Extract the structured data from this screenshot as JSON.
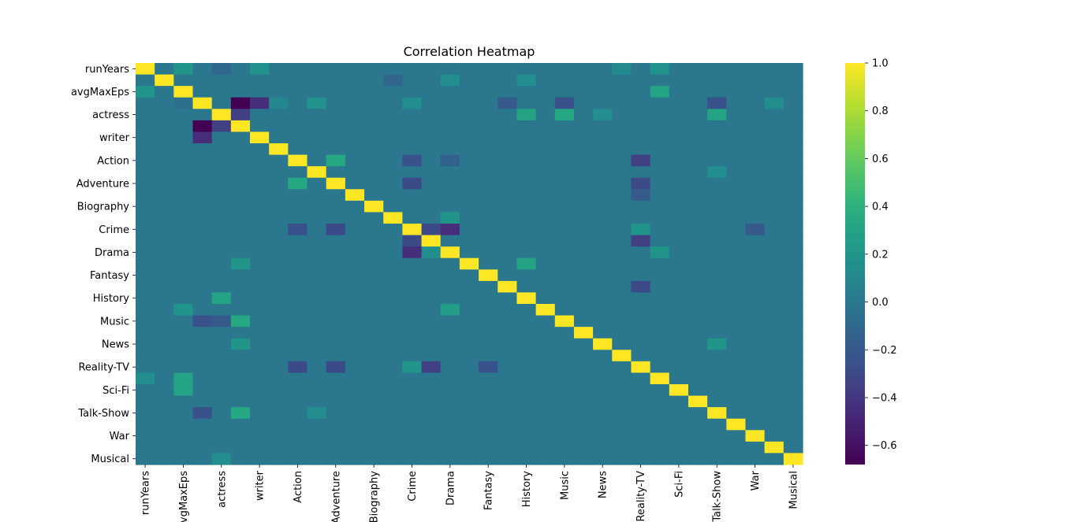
{
  "chart_data": {
    "type": "heatmap",
    "title": "Correlation Heatmap",
    "xlabel": "",
    "ylabel": "",
    "colormap": "viridis",
    "vmin": -0.68,
    "vmax": 1.0,
    "colorbar_ticks": [
      -0.6,
      -0.4,
      -0.2,
      0.0,
      0.2,
      0.4,
      0.6,
      0.8,
      1.0
    ],
    "colorbar_tick_labels": [
      "−0.6",
      "−0.4",
      "−0.2",
      "0.0",
      "0.2",
      "0.4",
      "0.6",
      "0.8",
      "1.0"
    ],
    "variables": [
      "runYears",
      "avgMaxEps",
      "actress",
      "writer",
      "Action",
      "Adventure",
      "Biography",
      "Crime",
      "Drama",
      "Fantasy",
      "History",
      "Music",
      "News",
      "Reality-TV",
      "Sci-Fi",
      "Talk-Show",
      "War",
      "Musical"
    ],
    "n_rows": 35,
    "n_cols": 35,
    "row_labels": [
      "runYears",
      "",
      "avgMaxEps",
      "",
      "actress",
      "",
      "writer",
      "",
      "Action",
      "",
      "Adventure",
      "",
      "Biography",
      "",
      "Crime",
      "",
      "Drama",
      "",
      "Fantasy",
      "",
      "History",
      "",
      "Music",
      "",
      "News",
      "",
      "Reality-TV",
      "",
      "Sci-Fi",
      "",
      "Talk-Show",
      "",
      "War",
      "",
      "Musical"
    ],
    "col_labels": [
      "runYears",
      "",
      "avgMaxEps",
      "",
      "actress",
      "",
      "writer",
      "",
      "Action",
      "",
      "Adventure",
      "",
      "Biography",
      "",
      "Crime",
      "",
      "Drama",
      "",
      "Fantasy",
      "",
      "History",
      "",
      "Music",
      "",
      "News",
      "",
      "Reality-TV",
      "",
      "Sci-Fi",
      "",
      "Talk-Show",
      "",
      "War",
      "",
      "Musical"
    ],
    "diagonal_value": 1.0,
    "background_value": 0.0,
    "notable_cells": [
      {
        "row": 0,
        "col": 2,
        "value": 0.2
      },
      {
        "row": 2,
        "col": 0,
        "value": 0.2
      },
      {
        "row": 0,
        "col": 4,
        "value": -0.1
      },
      {
        "row": 0,
        "col": 6,
        "value": 0.18
      },
      {
        "row": 0,
        "col": 25,
        "value": 0.12
      },
      {
        "row": 0,
        "col": 27,
        "value": 0.18
      },
      {
        "row": 1,
        "col": 13,
        "value": -0.12
      },
      {
        "row": 1,
        "col": 16,
        "value": 0.15
      },
      {
        "row": 1,
        "col": 20,
        "value": 0.15
      },
      {
        "row": 2,
        "col": 27,
        "value": 0.3
      },
      {
        "row": 3,
        "col": 5,
        "value": -0.68
      },
      {
        "row": 3,
        "col": 6,
        "value": -0.45
      },
      {
        "row": 3,
        "col": 2,
        "value": -0.05
      },
      {
        "row": 3,
        "col": 7,
        "value": 0.1
      },
      {
        "row": 3,
        "col": 9,
        "value": 0.18
      },
      {
        "row": 3,
        "col": 14,
        "value": 0.15
      },
      {
        "row": 3,
        "col": 19,
        "value": -0.2
      },
      {
        "row": 3,
        "col": 22,
        "value": -0.25
      },
      {
        "row": 3,
        "col": 30,
        "value": -0.25
      },
      {
        "row": 3,
        "col": 33,
        "value": 0.15
      },
      {
        "row": 4,
        "col": 5,
        "value": -0.35
      },
      {
        "row": 4,
        "col": 20,
        "value": 0.3
      },
      {
        "row": 4,
        "col": 22,
        "value": 0.35
      },
      {
        "row": 4,
        "col": 24,
        "value": 0.15
      },
      {
        "row": 4,
        "col": 30,
        "value": 0.3
      },
      {
        "row": 5,
        "col": 3,
        "value": -0.68
      },
      {
        "row": 5,
        "col": 4,
        "value": -0.35
      },
      {
        "row": 6,
        "col": 3,
        "value": -0.45
      },
      {
        "row": 8,
        "col": 10,
        "value": 0.35
      },
      {
        "row": 8,
        "col": 14,
        "value": -0.25
      },
      {
        "row": 8,
        "col": 16,
        "value": -0.15
      },
      {
        "row": 8,
        "col": 26,
        "value": -0.35
      },
      {
        "row": 9,
        "col": 30,
        "value": 0.15
      },
      {
        "row": 10,
        "col": 8,
        "value": 0.35
      },
      {
        "row": 10,
        "col": 14,
        "value": -0.3
      },
      {
        "row": 10,
        "col": 26,
        "value": -0.3
      },
      {
        "row": 11,
        "col": 26,
        "value": -0.2
      },
      {
        "row": 13,
        "col": 16,
        "value": 0.2
      },
      {
        "row": 14,
        "col": 16,
        "value": -0.45
      },
      {
        "row": 14,
        "col": 15,
        "value": -0.3
      },
      {
        "row": 14,
        "col": 8,
        "value": -0.25
      },
      {
        "row": 14,
        "col": 10,
        "value": -0.3
      },
      {
        "row": 14,
        "col": 26,
        "value": 0.2
      },
      {
        "row": 14,
        "col": 32,
        "value": -0.2
      },
      {
        "row": 15,
        "col": 14,
        "value": -0.3
      },
      {
        "row": 15,
        "col": 26,
        "value": -0.35
      },
      {
        "row": 16,
        "col": 14,
        "value": -0.45
      },
      {
        "row": 16,
        "col": 15,
        "value": 0.15
      },
      {
        "row": 16,
        "col": 27,
        "value": 0.2
      },
      {
        "row": 17,
        "col": 20,
        "value": 0.3
      },
      {
        "row": 17,
        "col": 5,
        "value": 0.2
      },
      {
        "row": 19,
        "col": 26,
        "value": -0.3
      },
      {
        "row": 20,
        "col": 4,
        "value": 0.3
      },
      {
        "row": 21,
        "col": 2,
        "value": 0.2
      },
      {
        "row": 21,
        "col": 16,
        "value": 0.25
      },
      {
        "row": 22,
        "col": 3,
        "value": -0.25
      },
      {
        "row": 22,
        "col": 4,
        "value": -0.2
      },
      {
        "row": 22,
        "col": 5,
        "value": 0.35
      },
      {
        "row": 24,
        "col": 5,
        "value": 0.2
      },
      {
        "row": 24,
        "col": 30,
        "value": 0.2
      },
      {
        "row": 26,
        "col": 8,
        "value": -0.3
      },
      {
        "row": 26,
        "col": 10,
        "value": -0.3
      },
      {
        "row": 26,
        "col": 14,
        "value": 0.2
      },
      {
        "row": 26,
        "col": 15,
        "value": -0.35
      },
      {
        "row": 26,
        "col": 18,
        "value": -0.25
      },
      {
        "row": 27,
        "col": 2,
        "value": 0.3
      },
      {
        "row": 27,
        "col": 0,
        "value": 0.15
      },
      {
        "row": 28,
        "col": 2,
        "value": 0.3
      },
      {
        "row": 30,
        "col": 3,
        "value": -0.25
      },
      {
        "row": 30,
        "col": 5,
        "value": 0.35
      },
      {
        "row": 30,
        "col": 9,
        "value": 0.15
      },
      {
        "row": 34,
        "col": 4,
        "value": 0.15
      }
    ],
    "grid": false,
    "legend": "colorbar right"
  }
}
